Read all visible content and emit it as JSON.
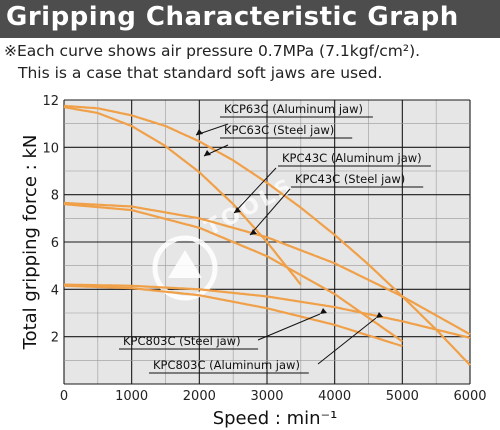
{
  "header": {
    "title": "Gripping Characteristic Graph",
    "note_line1": "※Each curve shows air pressure 0.7MPa (7.1kgf/cm²).",
    "note_line2": "This is a case that standard soft jaws are used."
  },
  "watermark": "TOOLS",
  "colors": {
    "background": "#e6e6e6",
    "curve": "#f0a048",
    "title_bar": "#4d4d4d"
  },
  "chart_data": {
    "type": "line",
    "title": "Gripping Characteristic Graph",
    "xlabel": "Speed : min⁻¹",
    "ylabel": "Total gripping force : kN",
    "xlim": [
      0,
      6000
    ],
    "ylim": [
      0,
      12
    ],
    "xticks": [
      0,
      1000,
      2000,
      3000,
      4000,
      5000,
      6000
    ],
    "yticks": [
      2,
      4,
      6,
      8,
      10,
      12
    ],
    "grid": true,
    "series": [
      {
        "name": "KCP63C (Aluminum jaw)",
        "x": [
          0,
          500,
          1000,
          1500,
          2000,
          2500,
          3000,
          3500,
          4000,
          4500,
          5000,
          5500,
          6000
        ],
        "y": [
          11.75,
          11.65,
          11.35,
          10.9,
          10.25,
          9.45,
          8.5,
          7.45,
          6.3,
          5.05,
          3.7,
          2.3,
          0.8
        ]
      },
      {
        "name": "KPC63C (Steel jaw)",
        "x": [
          0,
          500,
          1000,
          1500,
          2000,
          2500,
          3000,
          3500
        ],
        "y": [
          11.7,
          11.45,
          10.9,
          10.05,
          8.95,
          7.6,
          6.0,
          4.2
        ]
      },
      {
        "name": "KPC43C (Aluminum jaw)",
        "x": [
          0,
          1000,
          2000,
          3000,
          4000,
          5000,
          6000
        ],
        "y": [
          7.65,
          7.5,
          7.0,
          6.2,
          5.1,
          3.7,
          2.1
        ]
      },
      {
        "name": "KPC43C (Steel jaw)",
        "x": [
          0,
          1000,
          2000,
          3000,
          4000,
          5000
        ],
        "y": [
          7.6,
          7.35,
          6.6,
          5.4,
          3.8,
          1.8
        ]
      },
      {
        "name": "KPC803C (Aluminum jaw)",
        "x": [
          0,
          1000,
          2000,
          3000,
          4000,
          5000,
          6000
        ],
        "y": [
          4.2,
          4.15,
          4.0,
          3.7,
          3.25,
          2.65,
          1.95
        ]
      },
      {
        "name": "KPC803C (Steel jaw)",
        "x": [
          0,
          1000,
          2000,
          3000,
          4000,
          5000
        ],
        "y": [
          4.15,
          4.05,
          3.75,
          3.2,
          2.5,
          1.6
        ]
      }
    ],
    "annotations": [
      {
        "text": "KCP63C (Aluminum jaw)",
        "series": 0
      },
      {
        "text": "KPC63C (Steel jaw)",
        "series": 1
      },
      {
        "text": "KPC43C (Aluminum jaw)",
        "series": 2
      },
      {
        "text": "KPC43C (Steel jaw)",
        "series": 3
      },
      {
        "text": "KPC803C (Steel jaw)",
        "series": 5
      },
      {
        "text": "KPC803C (Aluminum jaw)",
        "series": 4
      }
    ]
  }
}
